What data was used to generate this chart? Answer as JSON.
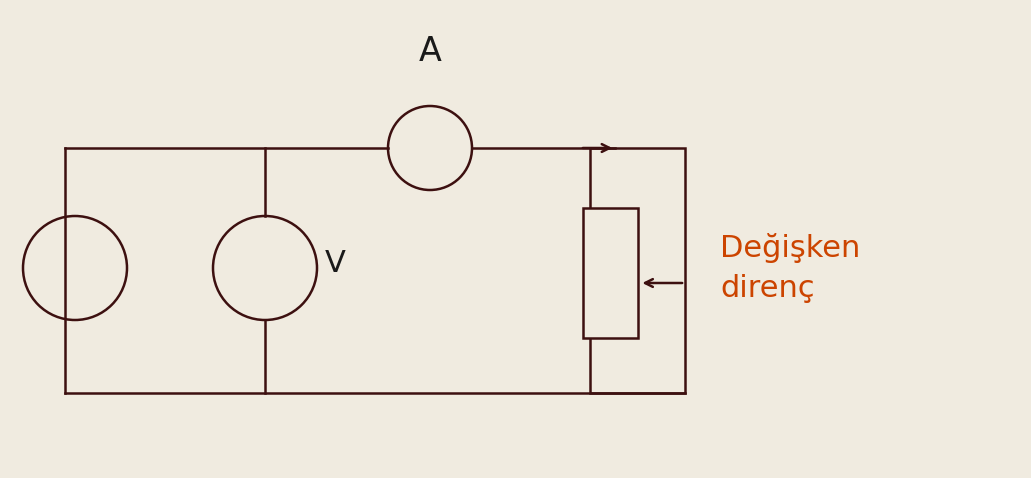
{
  "bg_color": "#f0ebe0",
  "line_color": "#3d1010",
  "text_color": "#1a1a1a",
  "label_color": "#cc4400",
  "fig_width": 10.31,
  "fig_height": 4.78,
  "label_text_line1": "Değişken",
  "label_text_line2": "direnç",
  "ammeter_label": "A",
  "voltmeter_label": "V"
}
